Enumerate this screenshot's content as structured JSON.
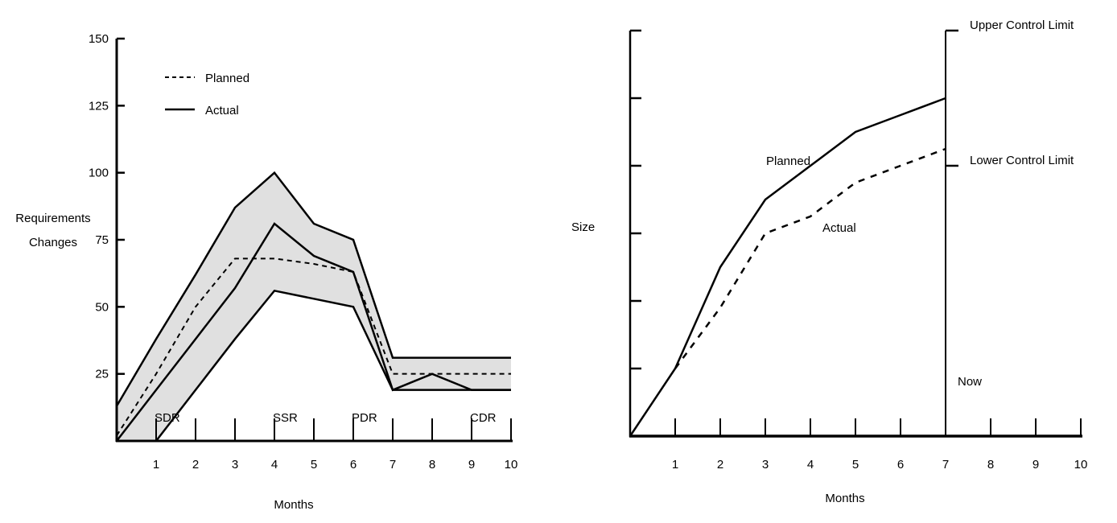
{
  "colors": {
    "line": "#000000",
    "band": "#e0e0e0"
  },
  "chart_data": [
    {
      "type": "line",
      "title": "",
      "xlabel": "Months",
      "ylabel": "Requirements Changes",
      "ylabel_lines": [
        "Requirements",
        "Changes"
      ],
      "xlim": [
        0,
        10
      ],
      "ylim": [
        0,
        150
      ],
      "x_ticks": [
        1,
        2,
        3,
        4,
        5,
        6,
        7,
        8,
        9,
        10
      ],
      "y_ticks": [
        25,
        50,
        75,
        100,
        125,
        150
      ],
      "legend": {
        "placement": "top-left",
        "entries": [
          {
            "label": "Planned",
            "style": "dashed"
          },
          {
            "label": "Actual",
            "style": "solid"
          }
        ]
      },
      "milestones": [
        {
          "label": "SDR",
          "x": 1
        },
        {
          "label": "SSR",
          "x": 4
        },
        {
          "label": "PDR",
          "x": 6
        },
        {
          "label": "CDR",
          "x": 9
        }
      ],
      "band": {
        "upper": [
          [
            0,
            13
          ],
          [
            1,
            38
          ],
          [
            2,
            62
          ],
          [
            3,
            87
          ],
          [
            4,
            100
          ],
          [
            5,
            81
          ],
          [
            6,
            75
          ],
          [
            7,
            31
          ],
          [
            8,
            31
          ],
          [
            9,
            31
          ],
          [
            10,
            31
          ]
        ],
        "lower": [
          [
            0,
            0
          ],
          [
            1,
            0
          ],
          [
            2,
            19
          ],
          [
            3,
            38
          ],
          [
            4,
            56
          ],
          [
            5,
            53
          ],
          [
            6,
            50
          ],
          [
            7,
            19
          ],
          [
            8,
            19
          ],
          [
            9,
            19
          ],
          [
            10,
            19
          ]
        ]
      },
      "series": [
        {
          "name": "Planned",
          "style": "dashed",
          "points": [
            [
              0,
              2
            ],
            [
              1,
              25
            ],
            [
              2,
              50
            ],
            [
              3,
              68
            ],
            [
              4,
              68
            ],
            [
              5,
              66
            ],
            [
              6,
              63
            ],
            [
              7,
              25
            ],
            [
              8,
              25
            ],
            [
              9,
              25
            ],
            [
              10,
              25
            ]
          ]
        },
        {
          "name": "Actual",
          "style": "solid",
          "points": [
            [
              0,
              0
            ],
            [
              1,
              19
            ],
            [
              2,
              38
            ],
            [
              3,
              57
            ],
            [
              4,
              81
            ],
            [
              5,
              69
            ],
            [
              6,
              63
            ],
            [
              7,
              19
            ],
            [
              8,
              25
            ],
            [
              9,
              19
            ],
            [
              10,
              19
            ]
          ]
        }
      ]
    },
    {
      "type": "line",
      "title": "",
      "xlabel": "Months",
      "ylabel": "Size",
      "xlim": [
        0,
        10
      ],
      "ylim": [
        0,
        6
      ],
      "x_ticks": [
        1,
        2,
        3,
        4,
        5,
        6,
        7,
        8,
        9,
        10
      ],
      "y_ticks": [
        1,
        2,
        3,
        4,
        5,
        6
      ],
      "now": {
        "label": "Now",
        "x": 7
      },
      "control_limits": [
        {
          "label": "Upper Control Limit",
          "y": 6
        },
        {
          "label": "Lower Control Limit",
          "y": 4
        }
      ],
      "series": [
        {
          "name": "Planned",
          "style": "solid",
          "points": [
            [
              0,
              0
            ],
            [
              1,
              1
            ],
            [
              2,
              2.5
            ],
            [
              3,
              3.5
            ],
            [
              4,
              4
            ],
            [
              5,
              4.5
            ],
            [
              6,
              4.75
            ],
            [
              7,
              5
            ]
          ]
        },
        {
          "name": "Actual",
          "style": "dashed",
          "points": [
            [
              1,
              1
            ],
            [
              2,
              1.9
            ],
            [
              3,
              3
            ],
            [
              4,
              3.25
            ],
            [
              5,
              3.75
            ],
            [
              6,
              4
            ],
            [
              7,
              4.25
            ]
          ]
        }
      ]
    }
  ]
}
